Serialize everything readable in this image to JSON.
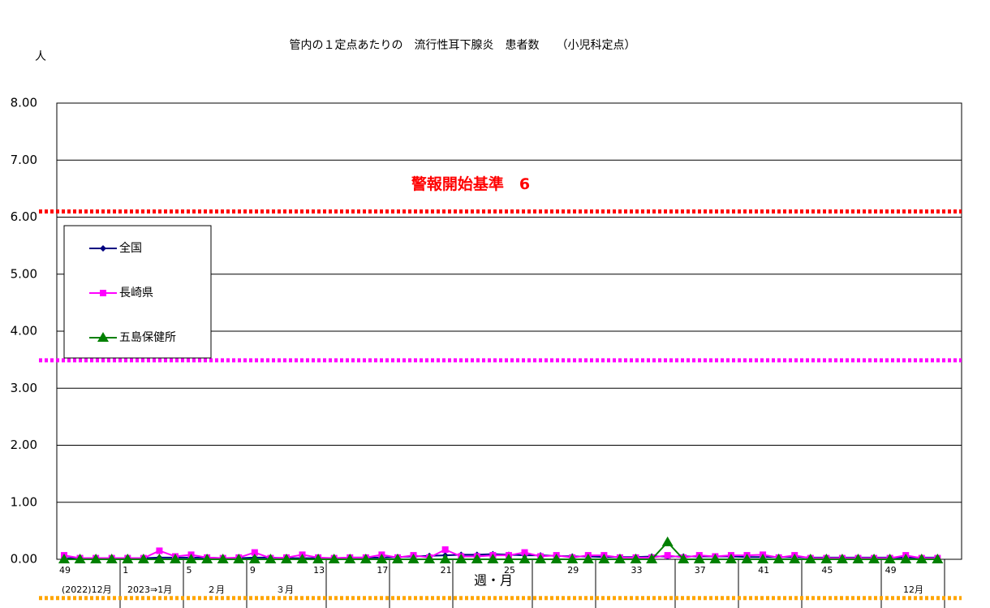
{
  "chart_data": {
    "type": "line",
    "title": "管内の１定点あたりの　流行性耳下腺炎　患者数　　（小児科定点）",
    "y_label": "人",
    "x_label": "週・月",
    "categories": [
      "49",
      null,
      null,
      null,
      "1",
      null,
      null,
      null,
      "5",
      null,
      null,
      null,
      "9",
      null,
      null,
      null,
      "13",
      null,
      null,
      null,
      "17",
      null,
      null,
      null,
      "21",
      null,
      null,
      null,
      "25",
      null,
      null,
      null,
      "29",
      null,
      null,
      null,
      "33",
      null,
      null,
      null,
      "37",
      null,
      null,
      null,
      "41",
      null,
      null,
      null,
      "45",
      null,
      null,
      null,
      "49",
      null,
      null,
      null
    ],
    "month_labels": [
      "(2022)12月",
      "2023⇒1月",
      "２月",
      "３月",
      "12月"
    ],
    "series": [
      {
        "name": "全国",
        "color": "#000080",
        "marker": "diamond",
        "values": [
          0.02,
          0.02,
          0.02,
          0.02,
          0.02,
          0.02,
          0.03,
          0.03,
          0.03,
          0.03,
          0.02,
          0.02,
          0.03,
          0.03,
          0.02,
          0.02,
          0.02,
          0.02,
          0.03,
          0.03,
          0.03,
          0.04,
          0.05,
          0.06,
          0.07,
          0.08,
          0.08,
          0.09,
          0.08,
          0.07,
          0.07,
          0.06,
          0.05,
          0.05,
          0.04,
          0.04,
          0.04,
          0.05,
          0.05,
          0.05,
          0.05,
          0.05,
          0.05,
          0.04,
          0.04,
          0.04,
          0.04,
          0.03,
          0.03,
          0.03,
          0.03,
          0.03,
          0.03,
          0.03,
          0.03,
          0.03
        ]
      },
      {
        "name": "長崎県",
        "color": "#ff00ff",
        "marker": "square",
        "values": [
          0.07,
          0.02,
          0.02,
          0.02,
          0.02,
          0.02,
          0.15,
          0.05,
          0.08,
          0.03,
          0.02,
          0.03,
          0.12,
          0.02,
          0.03,
          0.08,
          0.03,
          0.02,
          0.03,
          0.03,
          0.08,
          0.03,
          0.07,
          0.03,
          0.17,
          0.05,
          0.05,
          0.07,
          0.07,
          0.12,
          0.05,
          0.07,
          0.03,
          0.07,
          0.07,
          0.03,
          0.03,
          0.03,
          0.07,
          0.03,
          0.07,
          0.05,
          0.07,
          0.07,
          0.08,
          0.03,
          0.07,
          0.02,
          0.02,
          0.02,
          0.02,
          0.02,
          0.02,
          0.07,
          0.02,
          0.02
        ]
      },
      {
        "name": "五島保健所",
        "color": "#008000",
        "marker": "triangle",
        "values": [
          0,
          0,
          0,
          0,
          0,
          0,
          0,
          0,
          0,
          0,
          0,
          0,
          0,
          0,
          0,
          0,
          0,
          0,
          0,
          0,
          0,
          0,
          0,
          0,
          0,
          0,
          0,
          0,
          0,
          0,
          0,
          0,
          0,
          0,
          0,
          0,
          0,
          0,
          0.3,
          0,
          0,
          0,
          0,
          0,
          0,
          0,
          0,
          0,
          0,
          0,
          0,
          0,
          0,
          0,
          0,
          0
        ]
      }
    ],
    "reference_lines": [
      {
        "value": 6.1,
        "color": "#ff0000",
        "label": "警報開始基準　6"
      },
      {
        "value": 3.49,
        "color": "#ff00ff"
      },
      {
        "value": -0.68,
        "color": "#ffa500"
      }
    ],
    "ylim": [
      0,
      8
    ],
    "yticks": [
      {
        "value": 0,
        "label": "0.00"
      },
      {
        "value": 1,
        "label": "1.00"
      },
      {
        "value": 2,
        "label": "2.00"
      },
      {
        "value": 3,
        "label": "3.00"
      },
      {
        "value": 4,
        "label": "4.00"
      },
      {
        "value": 5,
        "label": "5.00"
      },
      {
        "value": 6,
        "label": "6.00"
      },
      {
        "value": 7,
        "label": "7.00"
      },
      {
        "value": 8,
        "label": "8.00"
      }
    ],
    "grid": true,
    "legend": "upper-left"
  }
}
